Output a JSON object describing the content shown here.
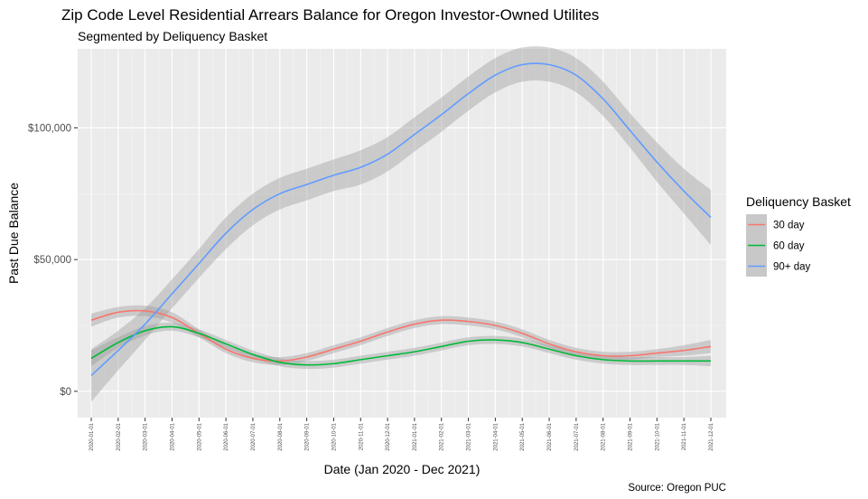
{
  "chart_data": {
    "type": "line",
    "title": "Zip Code Level Residential Arrears Balance for Oregon Investor-Owned Utilites",
    "subtitle": "Segmented by Deliquency Basket",
    "xlabel": "Date (Jan 2020 - Dec 2021)",
    "ylabel": "Past Due Balance",
    "caption": "Source: Oregon PUC",
    "ylim": [
      -10000,
      130000
    ],
    "yticks": [
      0,
      50000,
      100000
    ],
    "ytick_labels": [
      "$0",
      "$50,000",
      "$100,000"
    ],
    "grid": true,
    "legend_position": "right",
    "legend_title": "Deliquency Basket",
    "x": [
      "2020-01-01",
      "2020-02-01",
      "2020-03-01",
      "2020-04-01",
      "2020-05-01",
      "2020-06-01",
      "2020-07-01",
      "2020-08-01",
      "2020-09-01",
      "2020-10-01",
      "2020-11-01",
      "2020-12-01",
      "2021-01-01",
      "2021-02-01",
      "2021-03-01",
      "2021-04-01",
      "2021-05-01",
      "2021-06-01",
      "2021-07-01",
      "2021-08-01",
      "2021-09-01",
      "2021-10-01",
      "2021-11-01",
      "2021-12-01"
    ],
    "series": [
      {
        "name": "30 day",
        "color": "#f8766d",
        "values": [
          27000,
          30000,
          30500,
          28000,
          22000,
          16000,
          12500,
          11500,
          13000,
          16000,
          19000,
          22500,
          25500,
          27000,
          26500,
          25000,
          22000,
          18000,
          15000,
          13500,
          13500,
          14500,
          15500,
          17000
        ],
        "band": [
          2500,
          2000,
          2000,
          2000,
          1500,
          1500,
          1500,
          1500,
          1500,
          1500,
          1500,
          1500,
          1500,
          1500,
          1500,
          1500,
          1500,
          1500,
          1500,
          1500,
          1500,
          1500,
          2000,
          2500
        ]
      },
      {
        "name": "60 day",
        "color": "#00ba38",
        "values": [
          12500,
          18500,
          23000,
          24500,
          22000,
          18000,
          14000,
          11000,
          10000,
          10500,
          12000,
          13500,
          15000,
          17000,
          19000,
          19500,
          18500,
          16000,
          13500,
          12000,
          11500,
          11500,
          11500,
          11500
        ],
        "band": [
          3000,
          2000,
          1800,
          1500,
          1500,
          1500,
          1500,
          1500,
          1500,
          1500,
          1500,
          1500,
          1500,
          1500,
          1500,
          1500,
          1500,
          1500,
          1500,
          1500,
          1500,
          1500,
          1500,
          2000
        ]
      },
      {
        "name": "90+ day",
        "color": "#619cff",
        "values": [
          6000,
          15500,
          25500,
          37000,
          48500,
          60000,
          69000,
          75000,
          78500,
          82000,
          85000,
          90000,
          97500,
          105000,
          113000,
          120000,
          124000,
          124000,
          120000,
          111000,
          99000,
          87000,
          76000,
          66000
        ],
        "band": [
          10000,
          7500,
          6000,
          5500,
          5500,
          6000,
          6000,
          6000,
          6000,
          6000,
          6500,
          6500,
          6500,
          6500,
          6500,
          6500,
          6500,
          6500,
          6500,
          6500,
          6500,
          7500,
          8500,
          10500
        ]
      }
    ]
  }
}
